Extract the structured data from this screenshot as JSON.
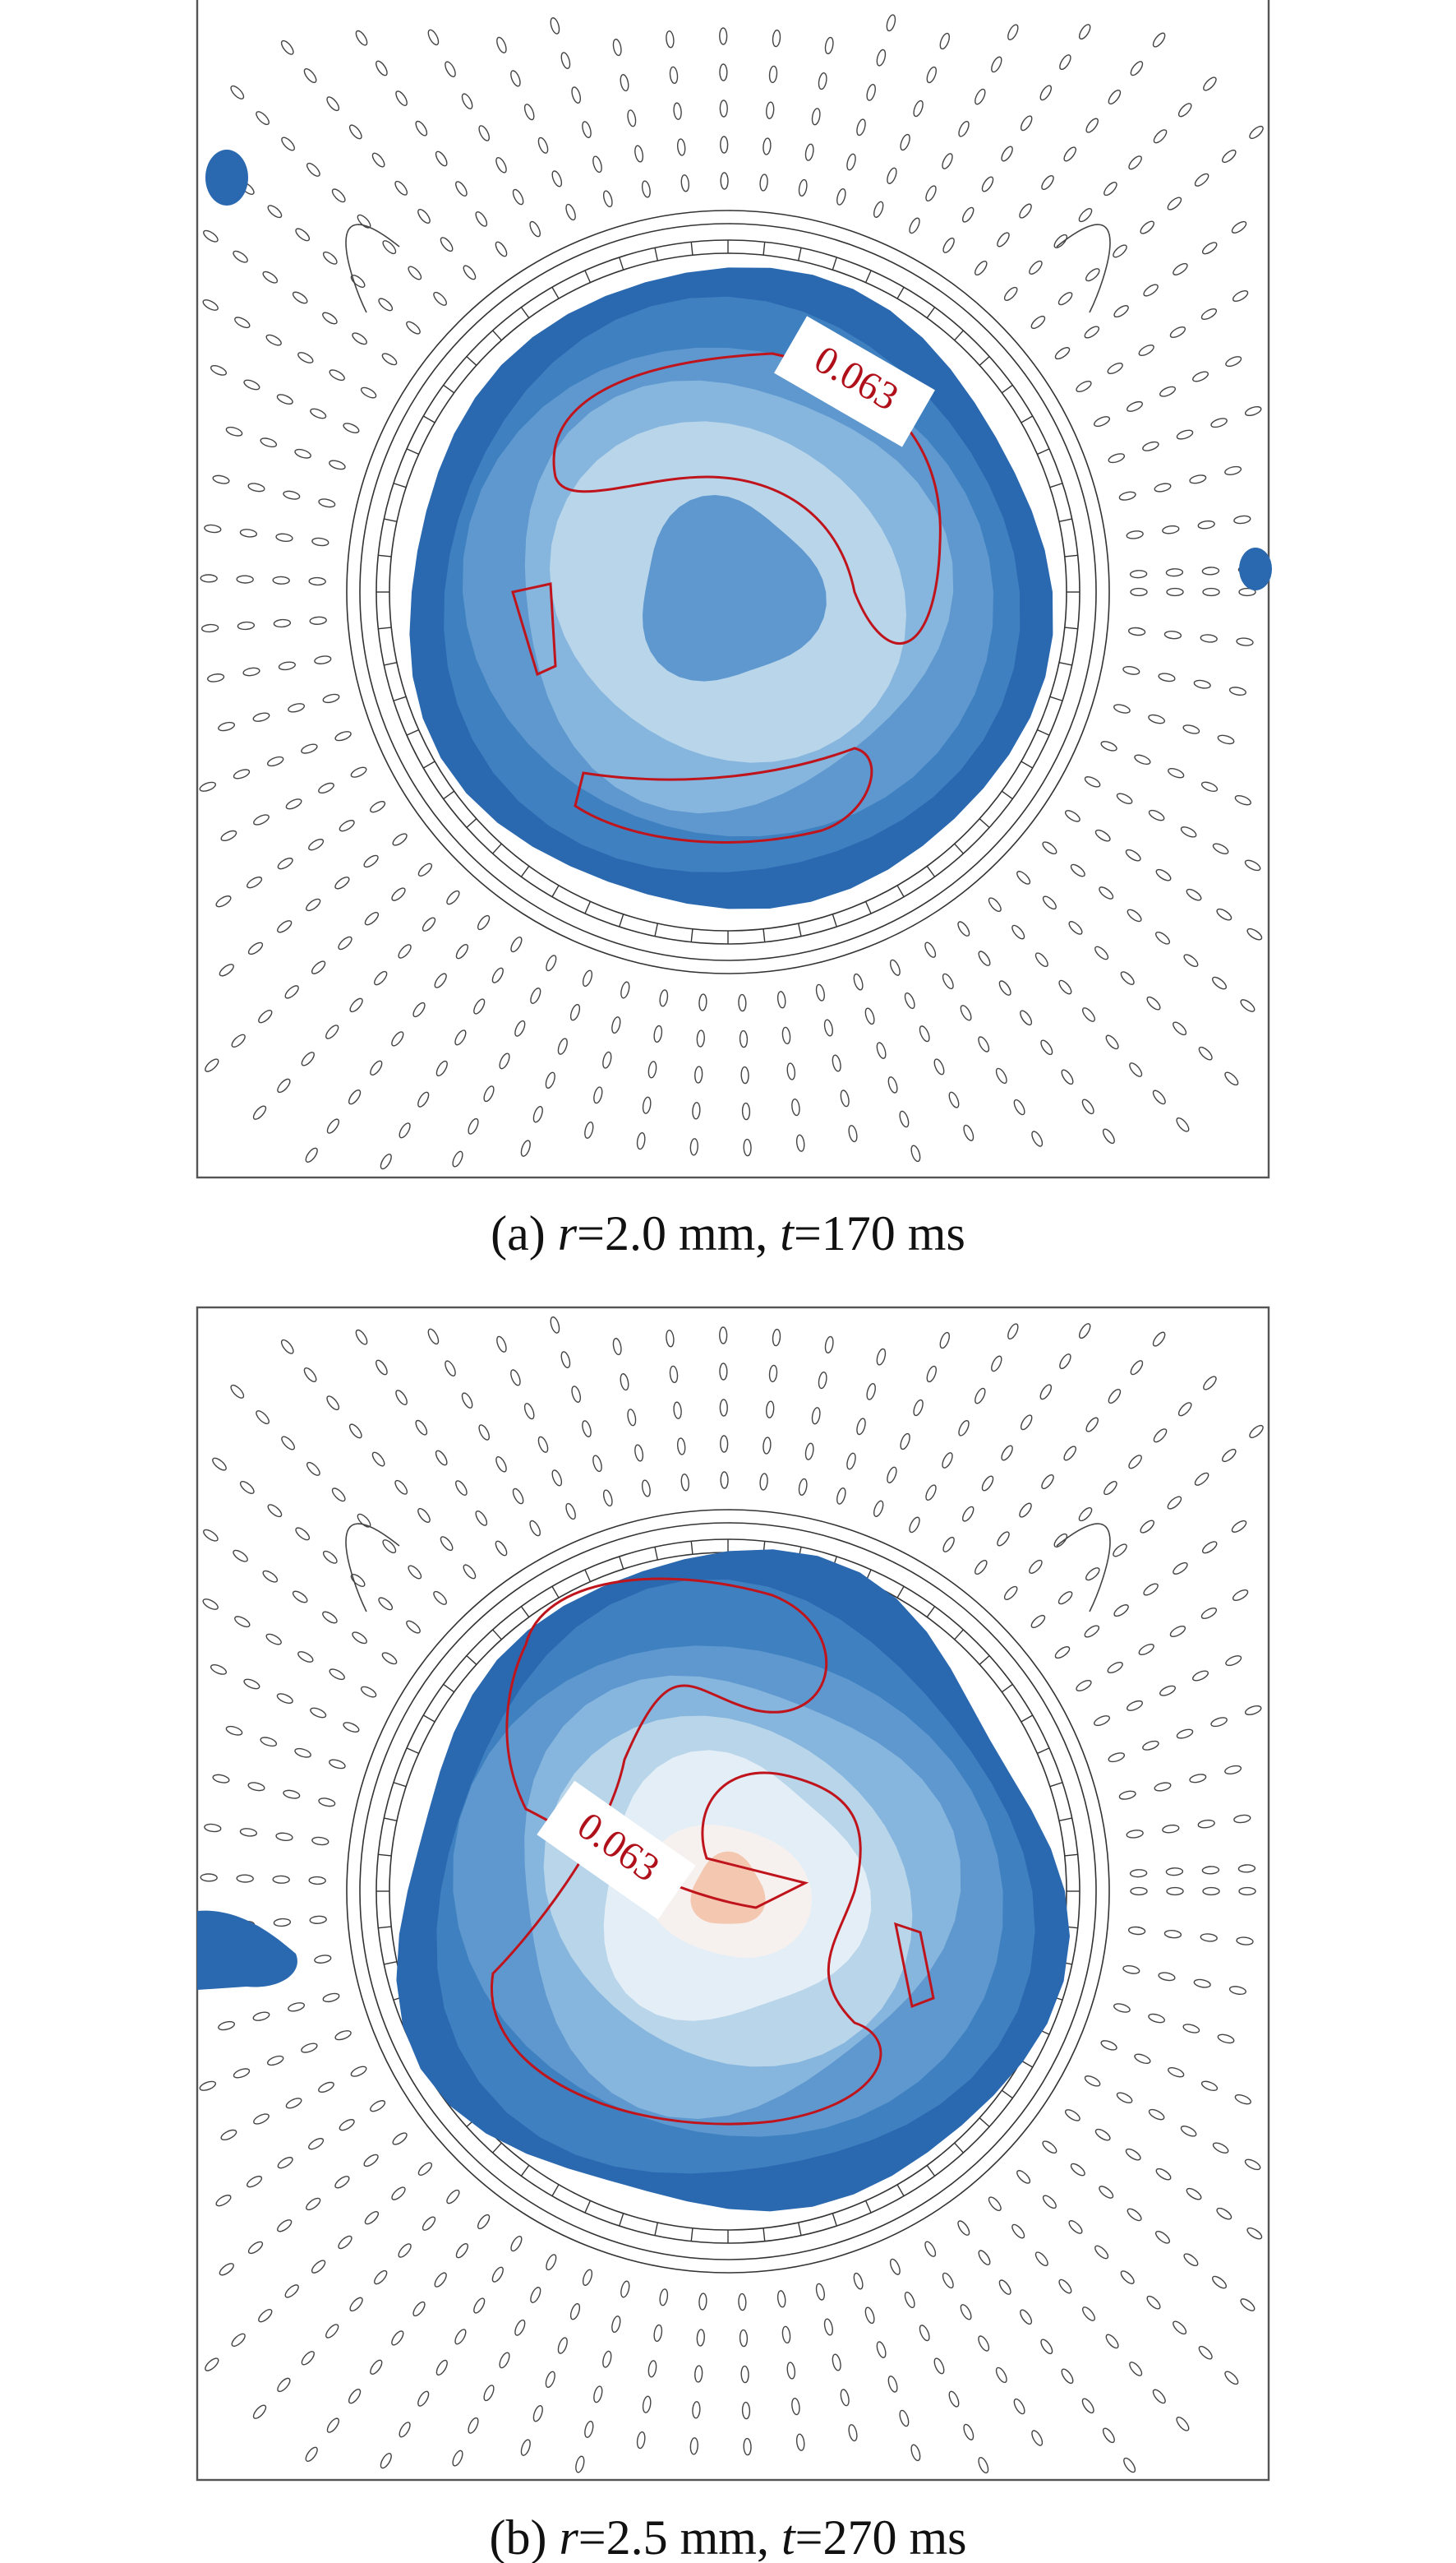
{
  "panels": [
    {
      "contour_label": "0.063",
      "caption": {
        "label": "(a)",
        "r": "r",
        "r_value": "=2.0 mm,",
        "t": "t",
        "t_value": "=170 ms"
      }
    },
    {
      "contour_label": "0.063",
      "caption": {
        "label": "(b)",
        "r": "r",
        "r_value": "=2.5 mm,",
        "t": "t",
        "t_value": "=270 ms"
      }
    }
  ]
}
